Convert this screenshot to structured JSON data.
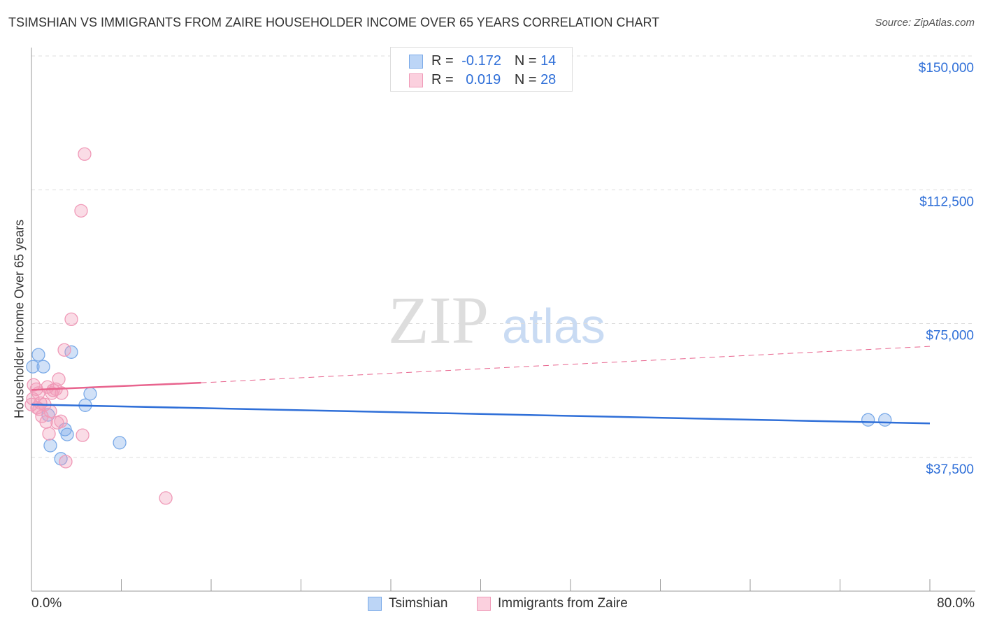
{
  "chart_data": {
    "type": "scatter",
    "title": "TSIMSHIAN VS IMMIGRANTS FROM ZAIRE HOUSEHOLDER INCOME OVER 65 YEARS CORRELATION CHART",
    "source": "Source: ZipAtlas.com",
    "xlabel": "",
    "ylabel": "Householder Income Over 65 years",
    "xlim": [
      0,
      80
    ],
    "ylim": [
      0,
      150000
    ],
    "x_tick_labels": [
      "0.0%",
      "80.0%"
    ],
    "y_ticks": [
      37500,
      75000,
      112500,
      150000
    ],
    "y_tick_labels": [
      "$37,500",
      "$75,000",
      "$112,500",
      "$150,000"
    ],
    "grid": true,
    "legend_position": "top-center",
    "watermark": "ZIPatlas",
    "series": [
      {
        "name": "Tsimshian",
        "color": "#7aaae8",
        "line_color": "#2f6fd8",
        "R": "-0.172",
        "N": "14",
        "x": [
          0.62,
          0.12,
          1.06,
          3.55,
          5.23,
          4.79,
          1.49,
          2.99,
          3.18,
          1.68,
          7.85,
          2.62,
          74.5,
          76.0
        ],
        "y": [
          66250,
          62900,
          62900,
          67000,
          55300,
          52100,
          49400,
          45300,
          43900,
          40800,
          41600,
          37100,
          48000,
          48000
        ],
        "trend": {
          "x": [
            0,
            80
          ],
          "y": [
            52300,
            47000
          ]
        }
      },
      {
        "name": "Immigrants from Zaire",
        "color": "#f09ab8",
        "line_color": "#e8648e",
        "R": "0.019",
        "N": "28",
        "x": [
          4.73,
          4.42,
          3.55,
          2.93,
          2.43,
          0.19,
          0.44,
          1.43,
          2.18,
          2.68,
          1.81,
          0.62,
          0.12,
          0.81,
          1.18,
          0.5,
          1.68,
          0.93,
          1.31,
          2.3,
          2.62,
          1.56,
          4.55,
          3.05,
          11.96,
          0,
          1.93,
          0.68
        ],
        "y": [
          122500,
          106600,
          76200,
          67600,
          59400,
          57800,
          56600,
          57200,
          56600,
          55500,
          55500,
          55500,
          53900,
          52700,
          52300,
          51400,
          50400,
          49000,
          47400,
          47200,
          47600,
          44100,
          43700,
          36300,
          26100,
          52300,
          56300,
          51000
        ],
        "trend": {
          "x": [
            0,
            15.1,
            80
          ],
          "y": [
            56400,
            58400,
            68600
          ]
        }
      }
    ]
  },
  "legend": {
    "r_label": "R =",
    "n_label": "N ="
  }
}
